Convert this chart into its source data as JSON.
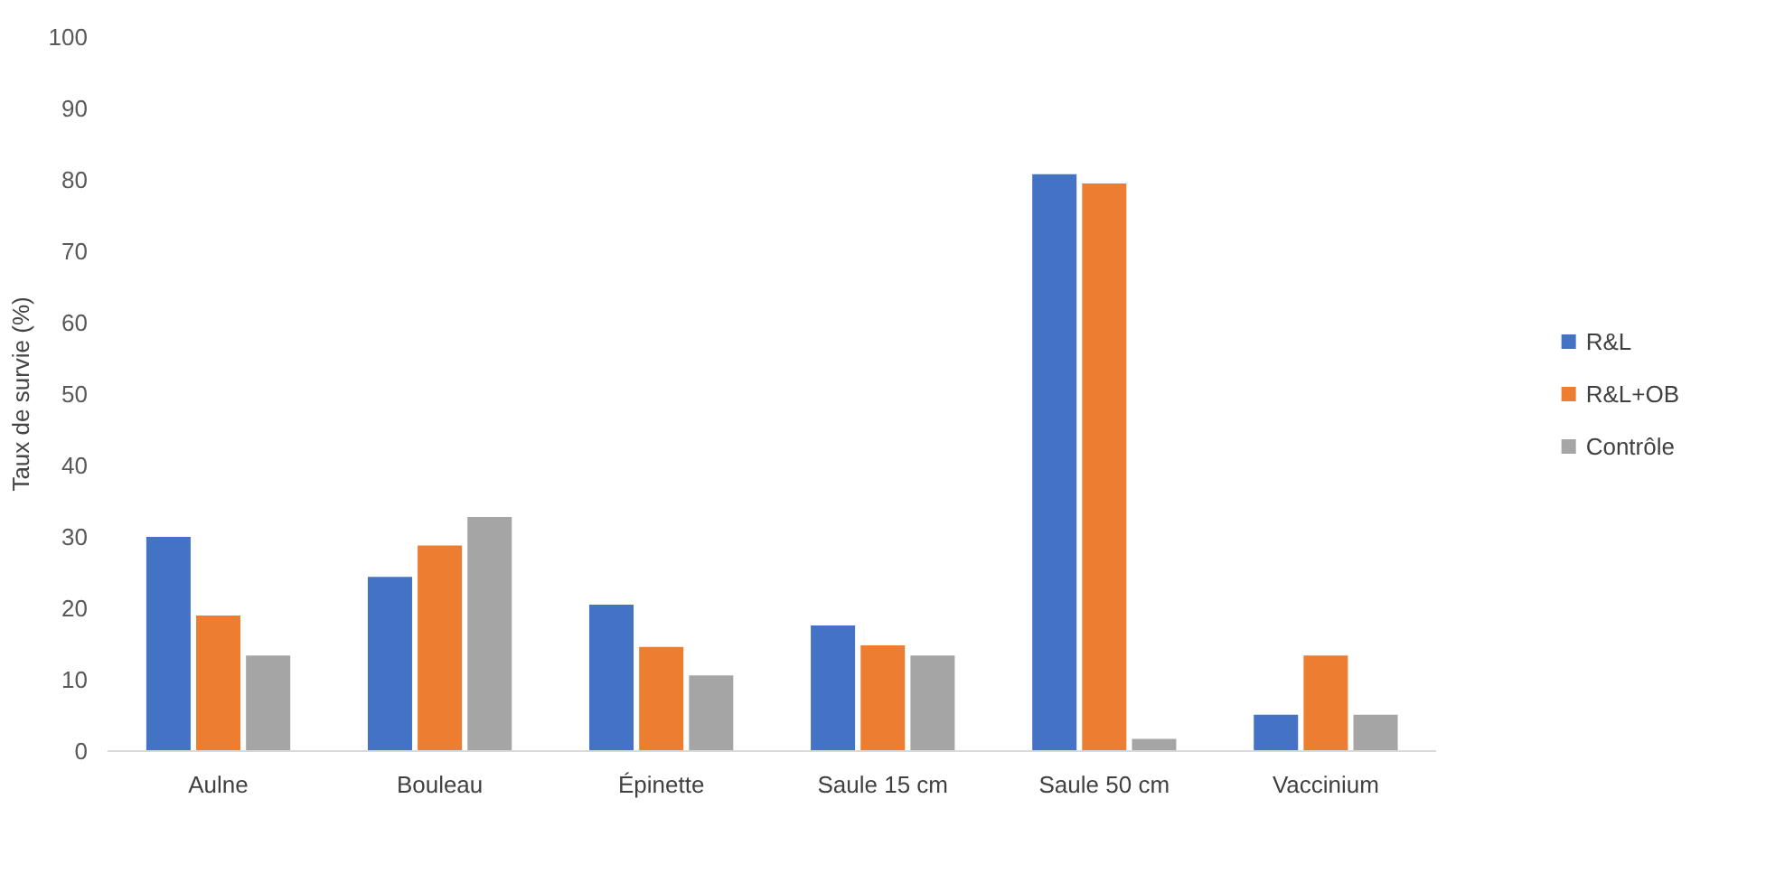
{
  "chart_data": {
    "type": "bar",
    "ylabel": "Taux de survie (%)",
    "categories": [
      "Aulne",
      "Bouleau",
      "Épinette",
      "Saule 15 cm",
      "Saule 50 cm",
      "Vaccinium"
    ],
    "series": [
      {
        "name": "R&L",
        "color": "#4472c4",
        "values": [
          30.0,
          24.4,
          20.5,
          17.6,
          80.8,
          5.1
        ]
      },
      {
        "name": "R&L+OB",
        "color": "#ed7d31",
        "values": [
          19.0,
          28.8,
          14.6,
          14.8,
          79.5,
          13.4
        ]
      },
      {
        "name": "Contrôle",
        "color": "#a5a5a5",
        "values": [
          13.4,
          32.8,
          10.6,
          13.4,
          1.7,
          5.1
        ]
      }
    ],
    "ylim": [
      0,
      100
    ],
    "yticks": [
      0,
      10,
      20,
      30,
      40,
      50,
      60,
      70,
      80,
      90,
      100
    ],
    "grid": false,
    "legend": "right"
  }
}
